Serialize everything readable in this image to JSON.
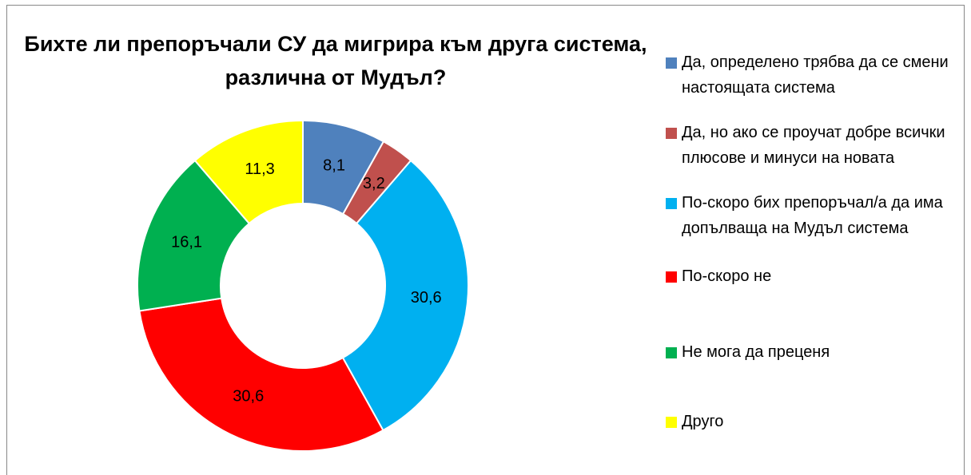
{
  "chart_data": {
    "type": "donut",
    "title": "Бихте ли препоръчали СУ да мигрира към друга система, различна от Мудъл?",
    "categories": [
      "Да, определено трябва да се смени настоящата система",
      "Да, но ако се проучат добре всички плюсове и минуси на новата",
      "По-скоро бих препоръчал/а да има допълваща на Мудъл система",
      "По-скоро не",
      "Не мога да преценя",
      "Друго"
    ],
    "values": [
      8.1,
      3.2,
      30.6,
      30.6,
      16.1,
      11.3
    ],
    "value_labels": [
      "8,1",
      "3,2",
      "30,6",
      "30,6",
      "16,1",
      "11,3"
    ],
    "colors": [
      "#4F81BD",
      "#C0504D",
      "#00B0F0",
      "#FF0000",
      "#00B050",
      "#FFFF00"
    ],
    "legend": "right"
  }
}
